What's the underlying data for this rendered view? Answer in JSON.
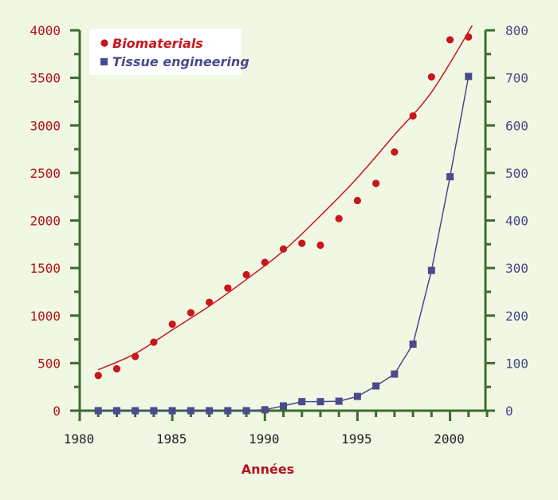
{
  "chart_data": {
    "type": "scatter",
    "xlabel": "Années",
    "xlim": [
      1980,
      2002
    ],
    "x_ticks": [
      "1980",
      "1985",
      "1990",
      "1995",
      "2000"
    ],
    "y_left": {
      "lim": [
        0,
        4000
      ],
      "ticks": [
        "0",
        "500",
        "1000",
        "1500",
        "2000",
        "2500",
        "3000",
        "3500",
        "4000"
      ],
      "color": "#b5121b"
    },
    "y_right": {
      "lim": [
        0,
        800
      ],
      "ticks": [
        "0",
        "100",
        "200",
        "300",
        "400",
        "500",
        "600",
        "700",
        "800"
      ],
      "color": "#4a4a8c"
    },
    "axes_color": "#3d6b2f",
    "legend_position": "top-left",
    "series": [
      {
        "name": "Biomaterials",
        "axis": "left",
        "marker": "circle",
        "color": "#c8161d",
        "x": [
          1981,
          1982,
          1983,
          1984,
          1985,
          1986,
          1987,
          1988,
          1989,
          1990,
          1991,
          1992,
          1993,
          1994,
          1995,
          1996,
          1997,
          1998,
          1999,
          2000,
          2001
        ],
        "y": [
          370,
          440,
          570,
          720,
          910,
          1030,
          1140,
          1290,
          1430,
          1560,
          1700,
          1760,
          1740,
          2020,
          2210,
          2390,
          2720,
          3100,
          3510,
          3900,
          3930
        ],
        "trend_x": [
          1981,
          1983,
          1985,
          1987,
          1989,
          1991,
          1993,
          1995,
          1997,
          1999,
          2001.2
        ],
        "trend_y": [
          430,
          600,
          850,
          1100,
          1380,
          1680,
          2050,
          2450,
          2900,
          3350,
          4050
        ]
      },
      {
        "name": "Tissue engineering",
        "axis": "right",
        "marker": "square",
        "color": "#4a4a8c",
        "x": [
          1981,
          1982,
          1983,
          1984,
          1985,
          1986,
          1987,
          1988,
          1989,
          1990,
          1991,
          1992,
          1993,
          1994,
          1995,
          1996,
          1997,
          1998,
          1999,
          2000,
          2001
        ],
        "y": [
          0,
          0,
          0,
          0,
          0,
          0,
          0,
          0,
          0,
          2,
          10,
          19,
          19,
          20,
          30,
          52,
          77,
          140,
          295,
          492,
          703
        ]
      }
    ]
  }
}
